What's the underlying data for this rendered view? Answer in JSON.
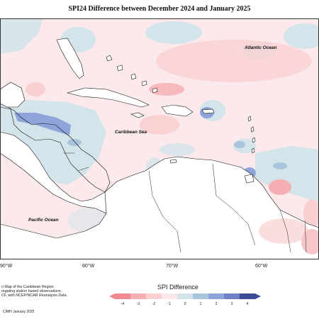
{
  "title": "SPI24 Difference between December 2024 and January 2025",
  "labels": {
    "atlantic": "Atlantic Ocean",
    "caribbean": "Caribbean Sea",
    "pacific": "Pacific Ocean"
  },
  "longitude_ticks": [
    "90°W",
    "80°W",
    "70°W",
    "60°W"
  ],
  "legend": {
    "title": "SPI Difference",
    "ticks": [
      "-4",
      "-3",
      "-2",
      "-1",
      "0",
      "1",
      "2",
      "3",
      "4"
    ],
    "colors": [
      "#f08a90",
      "#f5aeb2",
      "#f9cfd2",
      "#fde6e8",
      "#d3e4ea",
      "#a9c4dd",
      "#8ea4da",
      "#6f7fc8",
      "#3f4a9a"
    ]
  },
  "credits": [
    "n Map of the Caribbean Region",
    "regating station based observations,",
    "CF, with NCEP/NCAR Reanalysis Data."
  ],
  "footer": "CIMH January 2025"
}
